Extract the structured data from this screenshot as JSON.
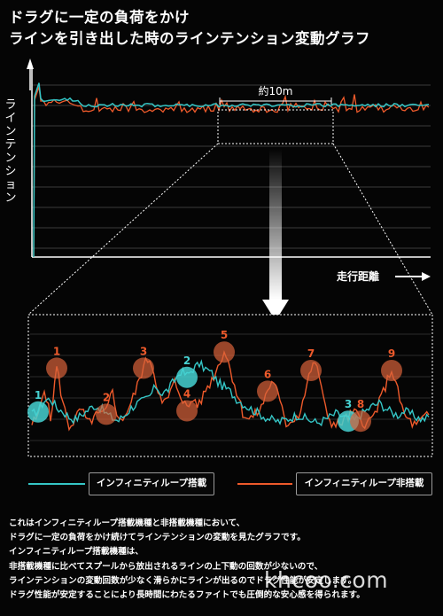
{
  "title": {
    "line1": "ドラグに一定の負荷をかけ",
    "line2": "ラインを引き出した時のラインテンション変動グラフ"
  },
  "colors": {
    "background": "#050505",
    "with_loop": "#35c6c6",
    "without_loop": "#ee5a2b",
    "marker_teal": "#47d2d2",
    "marker_orange": "#d9633a",
    "grid": "#3a3a3a"
  },
  "chart_data": {
    "type": "line",
    "ylabel": "ラインテンション",
    "xlabel": "走行距離",
    "span_label": "約10m",
    "grid": true,
    "series": [
      {
        "name": "インフィニティループ搭載",
        "color": "#35c6c6",
        "overview_level": 0.8,
        "detail_values": [
          0.3,
          0.34,
          0.42,
          0.44,
          0.36,
          0.33,
          0.28,
          0.26,
          0.3,
          0.34,
          0.38,
          0.36,
          0.31,
          0.27,
          0.25,
          0.3,
          0.36,
          0.4,
          0.42,
          0.46,
          0.55,
          0.48,
          0.52,
          0.6,
          0.68,
          0.64,
          0.7,
          0.74,
          0.7,
          0.66,
          0.58,
          0.54,
          0.5,
          0.44,
          0.4,
          0.36,
          0.33,
          0.3,
          0.27,
          0.25,
          0.24,
          0.26,
          0.28,
          0.3,
          0.27,
          0.25,
          0.23,
          0.25,
          0.28,
          0.31,
          0.29,
          0.26,
          0.25,
          0.3,
          0.34,
          0.38,
          0.4,
          0.36,
          0.32,
          0.3,
          0.33,
          0.31,
          0.28,
          0.26,
          0.28
        ]
      },
      {
        "name": "インフィニティループ非搭載",
        "color": "#ee5a2b",
        "overview_level": 0.78,
        "detail_values": [
          0.22,
          0.28,
          0.55,
          0.25,
          0.72,
          0.4,
          0.2,
          0.26,
          0.35,
          0.22,
          0.28,
          0.3,
          0.32,
          0.52,
          0.24,
          0.3,
          0.4,
          0.55,
          0.72,
          0.8,
          0.6,
          0.38,
          0.45,
          0.58,
          0.48,
          0.35,
          0.44,
          0.38,
          0.52,
          0.6,
          0.72,
          0.86,
          0.7,
          0.5,
          0.32,
          0.26,
          0.3,
          0.36,
          0.52,
          0.6,
          0.4,
          0.22,
          0.26,
          0.3,
          0.48,
          0.7,
          0.74,
          0.42,
          0.26,
          0.2,
          0.24,
          0.28,
          0.32,
          0.26,
          0.22,
          0.28,
          0.4,
          0.55,
          0.7,
          0.5,
          0.3,
          0.24,
          0.2,
          0.26,
          0.3
        ]
      }
    ],
    "markers": [
      {
        "label": "1",
        "series": "インフィニティループ搭載",
        "x_index": 1
      },
      {
        "label": "1",
        "series": "インフィニティループ非搭載",
        "x_index": 4
      },
      {
        "label": "2",
        "series": "インフィニティループ非搭載",
        "x_index": 12
      },
      {
        "label": "3",
        "series": "インフィニティループ非搭載",
        "x_index": 18
      },
      {
        "label": "2",
        "series": "インフィニティループ搭載",
        "x_index": 25
      },
      {
        "label": "4",
        "series": "インフィニティループ非搭載",
        "x_index": 25
      },
      {
        "label": "5",
        "series": "インフィニティループ非搭載",
        "x_index": 31
      },
      {
        "label": "6",
        "series": "インフィニティループ非搭載",
        "x_index": 38
      },
      {
        "label": "7",
        "series": "インフィニティループ非搭載",
        "x_index": 45
      },
      {
        "label": "3",
        "series": "インフィニティループ搭載",
        "x_index": 51
      },
      {
        "label": "8",
        "series": "インフィニティループ非搭載",
        "x_index": 53
      },
      {
        "label": "9",
        "series": "インフィニティループ非搭載",
        "x_index": 58
      }
    ]
  },
  "legend": {
    "with_loop": "インフィニティループ搭載",
    "without_loop": "インフィニティループ非搭載"
  },
  "description": [
    "これはインフィニティループ搭載機種と非搭載機種において、",
    "ドラグに一定の負荷をかけ続けてラインテンションの変動を見たグラフです。",
    "インフィニティループ搭載機種は、",
    "非搭載機種に比べてスプールから放出されるラインの上下動の回数が少ないので、",
    "ラインテンションの変動回数が少なく滑らかにラインが出るのでドラグ性能が安定します。",
    "ドラグ性能が安定することにより長時間にわたるファイトでも圧倒的な安心感を得られます。"
  ],
  "watermark": "khcoo.com"
}
